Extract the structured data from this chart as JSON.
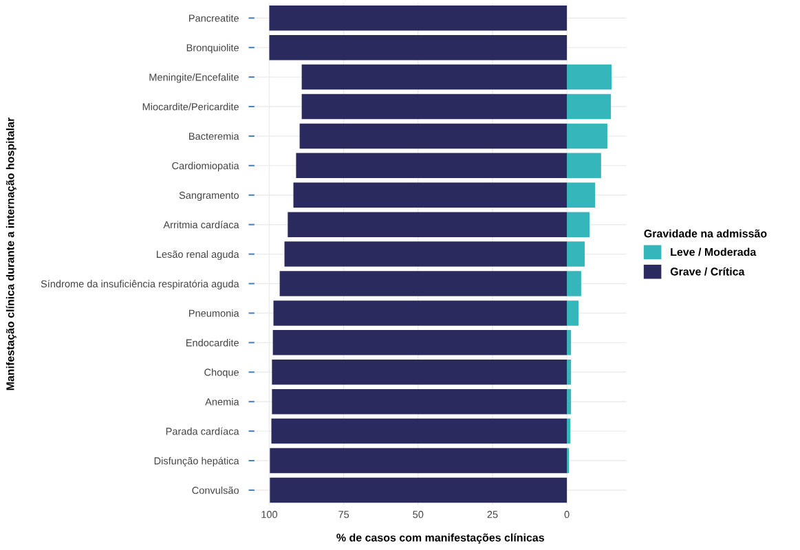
{
  "chart_data": {
    "type": "bar",
    "orientation": "horizontal",
    "categories": [
      "Pancreatite",
      "Bronquiolite",
      "Meningite/Encefalite",
      "Miocardite/Pericardite",
      "Bacteremia",
      "Cardiomiopatia",
      "Sangramento",
      "Arritmia cardíaca",
      "Lesão renal aguda",
      "Síndrome da insuficiência respiratória aguda",
      "Pneumonia",
      "Endocardite",
      "Choque",
      "Anemia",
      "Parada cardíaca",
      "Disfunção hepática",
      "Convulsão"
    ],
    "series": [
      {
        "name": "Leve / Moderada",
        "color": "#35b6ba",
        "values": [
          0,
          0,
          -15.0,
          -14.8,
          -13.6,
          -11.5,
          -9.5,
          -7.6,
          -6.0,
          -4.8,
          -3.9,
          -1.4,
          -1.4,
          -1.4,
          -1.2,
          -0.7,
          0
        ]
      },
      {
        "name": "Grave / Crítica",
        "color": "#2b2a5e",
        "values": [
          100,
          100,
          89.1,
          89.1,
          89.8,
          91.0,
          91.9,
          93.8,
          94.9,
          96.5,
          98.6,
          98.8,
          99.1,
          99.1,
          99.3,
          99.8,
          99.8
        ]
      }
    ],
    "xlim": [
      105,
      -20
    ],
    "xticks": [
      100,
      75,
      50,
      25,
      0
    ],
    "xlabel": "% de casos com manifestações clínicas",
    "ylabel": "Manifestação clínica durante a internação hospitalar",
    "legend_title": "Gravidade na admissão",
    "legend": "right",
    "grid": true,
    "stacked": true
  }
}
